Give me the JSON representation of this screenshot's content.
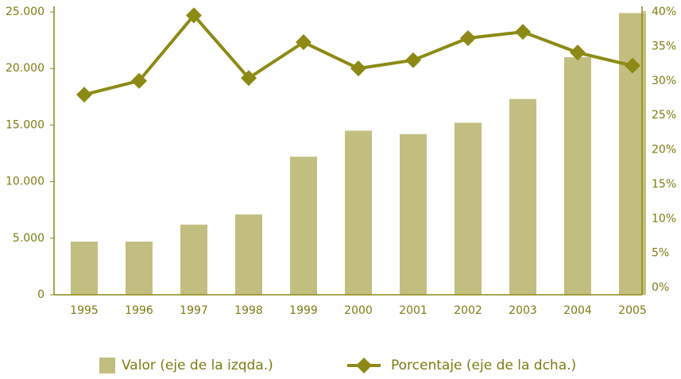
{
  "chart_data": {
    "type": "bar",
    "categories": [
      "1995",
      "1996",
      "1997",
      "1998",
      "1999",
      "2000",
      "2001",
      "2002",
      "2003",
      "2004",
      "2005"
    ],
    "series": [
      {
        "name": "Valor (eje de la izqda.)",
        "type": "bar",
        "color": "#c2be80",
        "values": [
          4700,
          4700,
          6200,
          7100,
          12200,
          14500,
          14200,
          15200,
          17300,
          21000,
          24900
        ]
      },
      {
        "name": "Porcentaje (eje de la dcha.)",
        "type": "line",
        "axis": "y2",
        "color": "#8c8a14",
        "values": [
          28,
          30,
          39.5,
          30.4,
          35.6,
          31.8,
          33,
          36.2,
          37.1,
          34.1,
          32.2
        ]
      }
    ],
    "ylim": [
      0,
      25000
    ],
    "yticks": [
      0,
      {
        "value": 5000,
        "label": "5.000"
      },
      {
        "value": 10000,
        "label": "10.000"
      },
      {
        "value": 15000,
        "label": "15.000"
      },
      {
        "value": 20000,
        "label": "20.000"
      },
      {
        "value": 25000,
        "label": "25.000"
      }
    ],
    "y2lim": [
      0,
      40
    ],
    "y2ticks": [
      {
        "value": 0,
        "label": "0%"
      },
      {
        "value": 5,
        "label": "5%"
      },
      {
        "value": 10,
        "label": "10%"
      },
      {
        "value": 15,
        "label": "15%"
      },
      {
        "value": 20,
        "label": "20%"
      },
      {
        "value": 25,
        "label": "25%"
      },
      {
        "value": 30,
        "label": "30%"
      },
      {
        "value": 35,
        "label": "35%"
      },
      {
        "value": 40,
        "label": "40%"
      }
    ],
    "legend": "bottom"
  }
}
